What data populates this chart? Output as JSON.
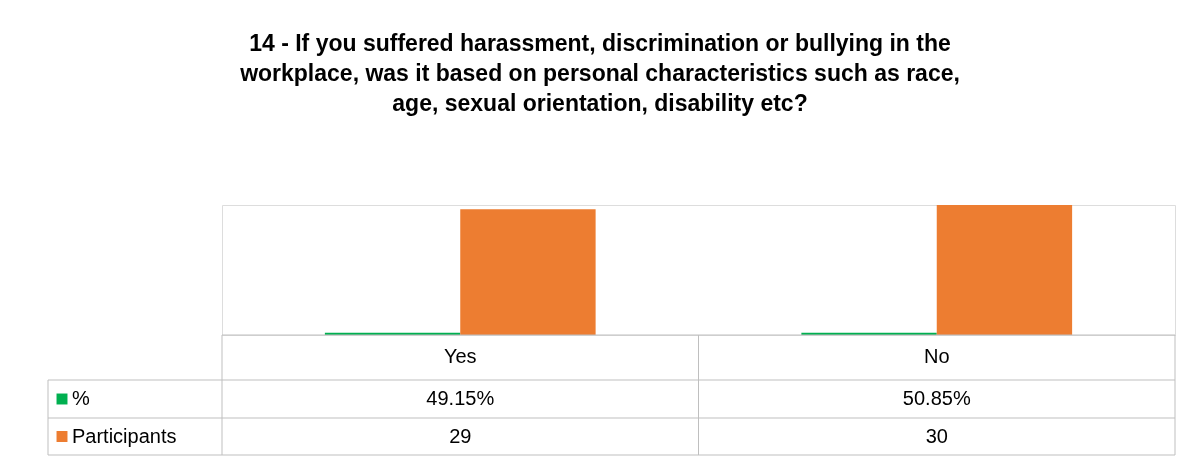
{
  "chart_data": {
    "type": "bar",
    "title": "14 - If you suffered harassment, discrimination or bullying in the workplace, was it based on personal characteristics such as race, age, sexual orientation, disability etc?",
    "categories": [
      "Yes",
      "No"
    ],
    "legend": "bottom left",
    "series": [
      {
        "name": "%",
        "color": "#00b050",
        "values": [
          0.4915,
          0.5085
        ],
        "value_labels": [
          "49.15%",
          "50.85%"
        ]
      },
      {
        "name": "Participants",
        "color": "#ed7d31",
        "values": [
          29,
          30
        ],
        "value_labels": [
          "29",
          "30"
        ]
      }
    ]
  }
}
